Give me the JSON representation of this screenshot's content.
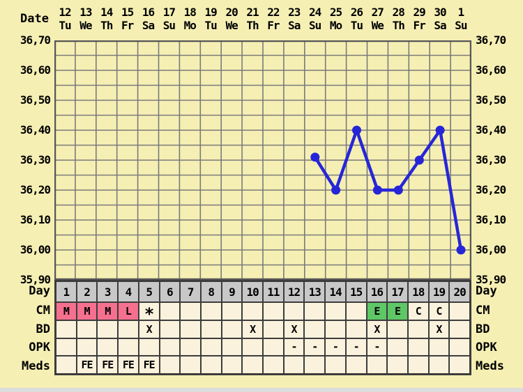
{
  "header": {
    "date_label": "Date",
    "dates": [
      "12",
      "13",
      "14",
      "15",
      "16",
      "17",
      "18",
      "19",
      "20",
      "21",
      "22",
      "23",
      "24",
      "25",
      "26",
      "27",
      "28",
      "29",
      "30",
      "1"
    ],
    "weekdays": [
      "Tu",
      "We",
      "Th",
      "Fr",
      "Sa",
      "Su",
      "Mo",
      "Tu",
      "We",
      "Th",
      "Fr",
      "Sa",
      "Su",
      "Mo",
      "Tu",
      "We",
      "Th",
      "Fr",
      "Sa",
      "Su"
    ]
  },
  "y_axis": {
    "labels": [
      "36,70",
      "36,60",
      "36,50",
      "36,40",
      "36,30",
      "36,20",
      "36,10",
      "36,00",
      "35,90"
    ]
  },
  "chart_data": {
    "type": "line",
    "x_label": "Day",
    "x_categories_count": 20,
    "days": [
      13,
      14,
      15,
      16,
      17,
      18,
      19,
      20
    ],
    "temperatures": [
      36.31,
      36.2,
      36.4,
      36.2,
      36.2,
      36.3,
      36.4,
      36.0
    ],
    "ylim": [
      35.9,
      36.7
    ],
    "y_major_step": 0.1,
    "y_minor_step": 0.05,
    "y_tick_labels": [
      "36,70",
      "36,60",
      "36,50",
      "36,40",
      "36,30",
      "36,20",
      "36,10",
      "36,00",
      "35,90"
    ],
    "grid": true,
    "legend": "none"
  },
  "table": {
    "rows": [
      {
        "key": "day",
        "label": "Day",
        "cells": [
          {
            "text": "1",
            "bg": "gray"
          },
          {
            "text": "2",
            "bg": "gray"
          },
          {
            "text": "3",
            "bg": "gray"
          },
          {
            "text": "4",
            "bg": "gray"
          },
          {
            "text": "5",
            "bg": "gray"
          },
          {
            "text": "6",
            "bg": "gray"
          },
          {
            "text": "7",
            "bg": "gray"
          },
          {
            "text": "8",
            "bg": "gray"
          },
          {
            "text": "9",
            "bg": "gray"
          },
          {
            "text": "10",
            "bg": "gray"
          },
          {
            "text": "11",
            "bg": "gray"
          },
          {
            "text": "12",
            "bg": "gray"
          },
          {
            "text": "13",
            "bg": "gray"
          },
          {
            "text": "14",
            "bg": "gray"
          },
          {
            "text": "15",
            "bg": "gray"
          },
          {
            "text": "16",
            "bg": "gray"
          },
          {
            "text": "17",
            "bg": "gray"
          },
          {
            "text": "18",
            "bg": "gray"
          },
          {
            "text": "19",
            "bg": "gray"
          },
          {
            "text": "20",
            "bg": "gray"
          }
        ]
      },
      {
        "key": "cm",
        "label": "CM",
        "cells": [
          {
            "text": "M",
            "bg": "pink"
          },
          {
            "text": "M",
            "bg": "pink"
          },
          {
            "text": "M",
            "bg": "pink"
          },
          {
            "text": "L",
            "bg": "pink"
          },
          {
            "text": "*"
          },
          {},
          {},
          {},
          {},
          {},
          {},
          {},
          {},
          {},
          {},
          {
            "text": "E",
            "bg": "green"
          },
          {
            "text": "E",
            "bg": "green"
          },
          {
            "text": "C"
          },
          {
            "text": "C"
          },
          {}
        ]
      },
      {
        "key": "bd",
        "label": "BD",
        "cells": [
          {},
          {},
          {},
          {},
          {
            "text": "X"
          },
          {},
          {},
          {},
          {},
          {
            "text": "X"
          },
          {},
          {
            "text": "X"
          },
          {},
          {},
          {},
          {
            "text": "X"
          },
          {},
          {},
          {
            "text": "X"
          },
          {}
        ]
      },
      {
        "key": "opk",
        "label": "OPK",
        "cells": [
          {},
          {},
          {},
          {},
          {},
          {},
          {},
          {},
          {},
          {},
          {},
          {
            "text": "-"
          },
          {
            "text": "-"
          },
          {
            "text": "-"
          },
          {
            "text": "-"
          },
          {
            "text": "-"
          },
          {},
          {},
          {},
          {}
        ]
      },
      {
        "key": "meds",
        "label": "Meds",
        "cells": [
          {},
          {
            "text": "FE"
          },
          {
            "text": "FE"
          },
          {
            "text": "FE"
          },
          {
            "text": "FE"
          },
          {},
          {},
          {},
          {},
          {},
          {},
          {},
          {},
          {},
          {},
          {},
          {},
          {},
          {},
          {}
        ]
      }
    ]
  },
  "colors": {
    "page_bg": "#f6efb4",
    "cell_bg": "#faf2dc",
    "day_row_bg": "#c8c8c8",
    "cm_menses_bg": "#f5708f",
    "cm_eggwhite_bg": "#5ec766",
    "line": "#2626d8",
    "grid": "#7a7a7a",
    "chart_border": "#565656",
    "table_border": "#3c3c3c",
    "text": "#000000"
  }
}
